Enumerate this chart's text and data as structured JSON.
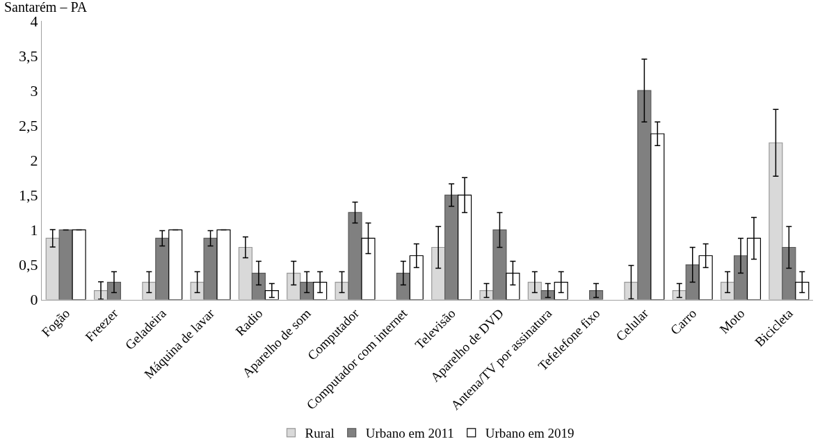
{
  "chart_data": {
    "type": "bar",
    "title": "Santarém – PA",
    "categories": [
      "Fogão",
      "Freezer",
      "Geladeira",
      "Máquina de lavar",
      "Radio",
      "Aparelho de som",
      "Computador",
      "Computador com internet",
      "Televisão",
      "Aparelho de DVD",
      "Antena/TV por assinatura",
      "Tefelefone fixo",
      "Celular",
      "Carro",
      "Moto",
      "Bicicleta"
    ],
    "series": [
      {
        "name": "Rural",
        "color": "#d9d9d9",
        "values": [
          0.88,
          0.13,
          0.25,
          0.25,
          0.75,
          0.38,
          0.25,
          null,
          0.75,
          0.13,
          0.25,
          null,
          0.25,
          0.13,
          0.25,
          2.25
        ],
        "errors": [
          0.125,
          0.125,
          0.15,
          0.15,
          0.15,
          0.17,
          0.15,
          null,
          0.3,
          0.1,
          0.15,
          null,
          0.24,
          0.1,
          0.15,
          0.48
        ]
      },
      {
        "name": "Urbano em 2011",
        "color": "#808080",
        "values": [
          1,
          0.25,
          0.88,
          0.88,
          0.38,
          0.25,
          1.25,
          0.38,
          1.5,
          1,
          0.13,
          0.13,
          3,
          0.5,
          0.63,
          0.75
        ],
        "errors": [
          0,
          0.15,
          0.11,
          0.11,
          0.17,
          0.15,
          0.15,
          0.17,
          0.16,
          0.25,
          0.1,
          0.1,
          0.45,
          0.25,
          0.25,
          0.3
        ]
      },
      {
        "name": "Urbano em 2019",
        "color": "#ffffff",
        "values": [
          1,
          null,
          1,
          1,
          0.13,
          0.25,
          0.88,
          0.63,
          1.5,
          0.38,
          0.25,
          null,
          2.38,
          0.63,
          0.88,
          0.25
        ],
        "errors": [
          0,
          null,
          0,
          0,
          0.1,
          0.15,
          0.22,
          0.17,
          0.25,
          0.17,
          0.15,
          null,
          0.17,
          0.17,
          0.3,
          0.15
        ]
      }
    ],
    "ylim": [
      0,
      4
    ],
    "yticks": [
      0,
      {
        "value": 0.5,
        "label": "0,5"
      },
      1,
      {
        "value": 1.5,
        "label": "1,5"
      },
      2,
      {
        "value": 2.5,
        "label": "2,5"
      },
      3,
      {
        "value": 3.5,
        "label": "3,5"
      },
      4
    ],
    "legend": "bottom"
  }
}
